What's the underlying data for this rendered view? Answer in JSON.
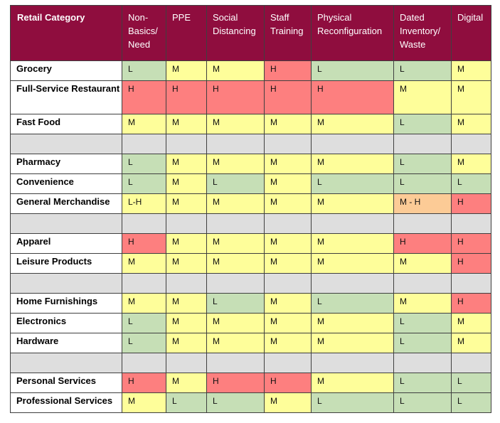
{
  "table": {
    "headers": [
      "Retail Category",
      "Non-Basics/ Need",
      "PPE",
      "Social Distancing",
      "Staff Training",
      "Physical Reconfiguration",
      "Dated Inventory/ Waste",
      "Digital"
    ],
    "rows": [
      {
        "category": "Grocery",
        "cells": [
          "L",
          "M",
          "M",
          "H",
          "L",
          "L",
          "M"
        ]
      },
      {
        "category": "Full-Service Restaurant",
        "cells": [
          "H",
          "H",
          "H",
          "H",
          "H",
          "M",
          "M"
        ],
        "tall": true
      },
      {
        "category": "Fast Food",
        "cells": [
          "M",
          "M",
          "M",
          "M",
          "M",
          "L",
          "M"
        ]
      },
      {
        "spacer": true
      },
      {
        "category": "Pharmacy",
        "cells": [
          "L",
          "M",
          "M",
          "M",
          "M",
          "L",
          "M"
        ]
      },
      {
        "category": "Convenience",
        "cells": [
          "L",
          "M",
          "L",
          "M",
          "L",
          "L",
          "L"
        ]
      },
      {
        "category": "General Merchandise",
        "cells": [
          "L-H",
          "M",
          "M",
          "M",
          "M",
          "M - H",
          "H"
        ]
      },
      {
        "spacer": true
      },
      {
        "category": "Apparel",
        "cells": [
          "H",
          "M",
          "M",
          "M",
          "M",
          "H",
          "H"
        ]
      },
      {
        "category": "Leisure Products",
        "cells": [
          "M",
          "M",
          "M",
          "M",
          "M",
          "M",
          "H"
        ]
      },
      {
        "spacer": true
      },
      {
        "category": "Home Furnishings",
        "cells": [
          "M",
          "M",
          "L",
          "M",
          "L",
          "M",
          "H"
        ]
      },
      {
        "category": "Electronics",
        "cells": [
          "L",
          "M",
          "M",
          "M",
          "M",
          "L",
          "M"
        ]
      },
      {
        "category": "Hardware",
        "cells": [
          "L",
          "M",
          "M",
          "M",
          "M",
          "L",
          "M"
        ]
      },
      {
        "spacer": true
      },
      {
        "category": "Personal Services",
        "cells": [
          "H",
          "M",
          "H",
          "H",
          "M",
          "L",
          "L"
        ]
      },
      {
        "category": "Professional Services",
        "cells": [
          "M",
          "L",
          "L",
          "M",
          "L",
          "L",
          "L"
        ]
      }
    ]
  },
  "colors": {
    "header_bg": "#8f0d3e",
    "low": "#c6dfb6",
    "medium": "#fefe9a",
    "high": "#fd7f7f",
    "medium_high": "#fccb96",
    "spacer": "#dedede"
  }
}
